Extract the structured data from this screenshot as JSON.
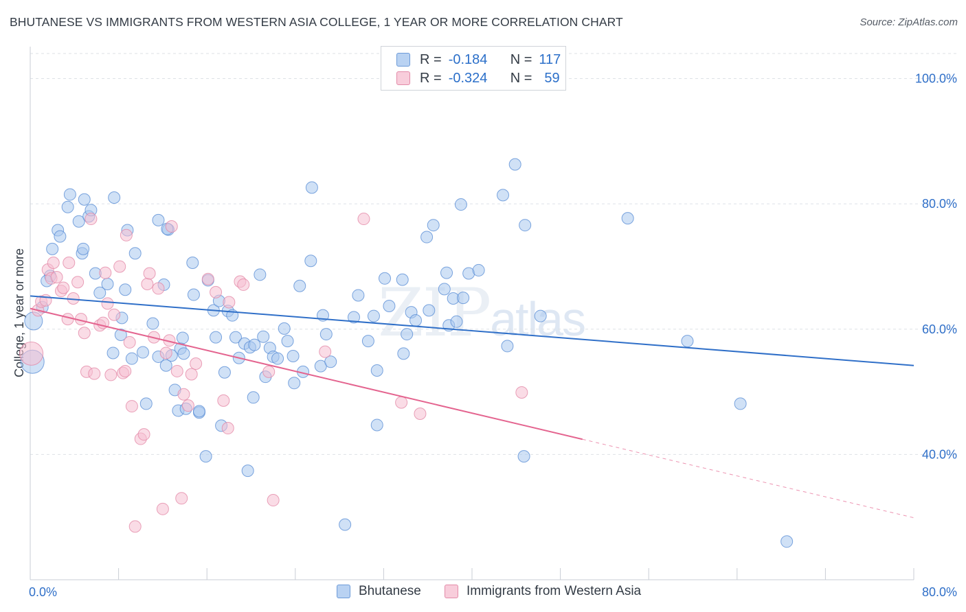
{
  "title": "BHUTANESE VS IMMIGRANTS FROM WESTERN ASIA COLLEGE, 1 YEAR OR MORE CORRELATION CHART",
  "source": "Source: ZipAtlas.com",
  "watermark": {
    "part1": "ZIP",
    "part2": "atlas"
  },
  "legend": {
    "row1": {
      "r_label": "R =",
      "r_value": "-0.184",
      "n_label": "N =",
      "n_value": "117"
    },
    "row2": {
      "r_label": "R =",
      "r_value": "-0.324",
      "n_label": "N =",
      "n_value": "59"
    }
  },
  "colors": {
    "blue_fill": "#a9c8ef",
    "blue_stroke": "#5b8fd6",
    "blue_line": "#2f6fc8",
    "pink_fill": "#f5c0d1",
    "pink_stroke": "#e38aa8",
    "pink_line": "#e4648f",
    "tick_label": "#2f6fc8",
    "grid": "#dde1e6"
  },
  "chart_data": {
    "type": "scatter",
    "xlabel": "",
    "ylabel": "College, 1 year or more",
    "xlim": [
      0,
      80
    ],
    "ylim": [
      20,
      104
    ],
    "x_ticks": [
      "0.0%",
      "80.0%"
    ],
    "y_ticks": [
      {
        "value": 100,
        "label": "100.0%"
      },
      {
        "value": 80,
        "label": "80.0%"
      },
      {
        "value": 60,
        "label": "60.0%"
      },
      {
        "value": 40,
        "label": "40.0%"
      }
    ],
    "grid": true,
    "legend_position": "top-center",
    "series": [
      {
        "name": "Bhutanese",
        "color": "#5b8fd6",
        "trend": {
          "x0": 0,
          "y0": 65.3,
          "x1": 80,
          "y1": 54.2,
          "solid_until": 80
        },
        "points": [
          [
            0.2,
            54.8,
            3
          ],
          [
            0.3,
            61.3,
            2
          ],
          [
            1.1,
            63.5,
            1
          ],
          [
            1.8,
            68.5,
            1
          ],
          [
            1.5,
            67.7,
            1
          ],
          [
            2.0,
            72.8,
            1
          ],
          [
            2.5,
            75.8,
            1
          ],
          [
            2.7,
            74.8,
            1
          ],
          [
            3.4,
            79.5,
            1
          ],
          [
            3.6,
            81.5,
            1
          ],
          [
            4.4,
            77.2,
            1
          ],
          [
            4.9,
            80.7,
            1
          ],
          [
            5.3,
            78.0,
            1
          ],
          [
            5.5,
            79.0,
            1
          ],
          [
            4.7,
            72.1,
            1
          ],
          [
            4.8,
            72.8,
            1
          ],
          [
            7.6,
            81.0,
            1
          ],
          [
            5.9,
            68.9,
            1
          ],
          [
            6.3,
            65.8,
            1
          ],
          [
            7.0,
            67.2,
            1
          ],
          [
            7.5,
            56.2,
            1
          ],
          [
            8.3,
            61.8,
            1
          ],
          [
            8.2,
            59.1,
            1
          ],
          [
            8.6,
            66.3,
            1
          ],
          [
            8.8,
            75.8,
            1
          ],
          [
            9.5,
            72.1,
            1
          ],
          [
            9.2,
            55.3,
            1
          ],
          [
            10.2,
            56.3,
            1
          ],
          [
            10.5,
            48.1,
            1
          ],
          [
            11.6,
            77.4,
            1
          ],
          [
            11.1,
            60.9,
            1
          ],
          [
            11.6,
            55.6,
            1
          ],
          [
            12.1,
            67.1,
            1
          ],
          [
            12.3,
            54.2,
            1
          ],
          [
            12.5,
            75.9,
            1
          ],
          [
            12.4,
            76.0,
            1
          ],
          [
            12.8,
            55.8,
            1
          ],
          [
            13.1,
            50.3,
            1
          ],
          [
            13.4,
            47.0,
            1
          ],
          [
            13.6,
            56.9,
            1
          ],
          [
            13.8,
            58.6,
            1
          ],
          [
            13.9,
            56.1,
            1
          ],
          [
            14.1,
            47.3,
            1
          ],
          [
            14.7,
            70.6,
            1
          ],
          [
            14.8,
            65.5,
            1
          ],
          [
            15.3,
            46.7,
            1
          ],
          [
            15.3,
            46.9,
            1
          ],
          [
            15.9,
            39.7,
            1
          ],
          [
            16.1,
            67.8,
            1
          ],
          [
            16.6,
            63.0,
            1
          ],
          [
            16.8,
            58.7,
            1
          ],
          [
            17.1,
            64.5,
            1
          ],
          [
            17.3,
            44.6,
            1
          ],
          [
            17.6,
            53.1,
            1
          ],
          [
            17.9,
            62.9,
            1
          ],
          [
            18.3,
            62.2,
            1
          ],
          [
            18.6,
            58.7,
            1
          ],
          [
            18.9,
            55.4,
            1
          ],
          [
            19.4,
            57.7,
            1
          ],
          [
            19.7,
            37.4,
            1
          ],
          [
            19.9,
            57.1,
            1
          ],
          [
            20.2,
            49.1,
            1
          ],
          [
            20.3,
            57.5,
            1
          ],
          [
            20.8,
            68.7,
            1
          ],
          [
            21.1,
            58.8,
            1
          ],
          [
            21.3,
            52.4,
            1
          ],
          [
            21.7,
            57.0,
            1
          ],
          [
            22.0,
            55.6,
            1
          ],
          [
            22.4,
            55.3,
            1
          ],
          [
            23.0,
            60.1,
            1
          ],
          [
            23.3,
            58.1,
            1
          ],
          [
            23.8,
            55.7,
            1
          ],
          [
            23.9,
            51.4,
            1
          ],
          [
            24.4,
            66.9,
            1
          ],
          [
            24.7,
            53.2,
            1
          ],
          [
            25.4,
            70.9,
            1
          ],
          [
            25.5,
            82.6,
            1
          ],
          [
            26.3,
            54.1,
            1
          ],
          [
            26.5,
            62.2,
            1
          ],
          [
            26.8,
            59.2,
            1
          ],
          [
            27.2,
            54.8,
            1
          ],
          [
            28.5,
            28.8,
            1
          ],
          [
            29.3,
            61.9,
            1
          ],
          [
            29.7,
            65.4,
            1
          ],
          [
            30.6,
            58.1,
            1
          ],
          [
            31.1,
            62.1,
            1
          ],
          [
            31.4,
            53.4,
            1
          ],
          [
            31.4,
            44.7,
            1
          ],
          [
            32.1,
            68.1,
            1
          ],
          [
            32.5,
            63.7,
            1
          ],
          [
            33.7,
            67.9,
            1
          ],
          [
            33.8,
            56.1,
            1
          ],
          [
            34.1,
            59.2,
            1
          ],
          [
            34.5,
            62.7,
            1
          ],
          [
            34.9,
            61.4,
            1
          ],
          [
            35.9,
            74.7,
            1
          ],
          [
            36.1,
            63.0,
            1
          ],
          [
            36.5,
            76.6,
            1
          ],
          [
            37.5,
            66.4,
            1
          ],
          [
            37.7,
            69.0,
            1
          ],
          [
            37.9,
            60.6,
            1
          ],
          [
            38.3,
            64.9,
            1
          ],
          [
            38.6,
            61.2,
            1
          ],
          [
            39.2,
            65.0,
            1
          ],
          [
            39.0,
            79.9,
            1
          ],
          [
            39.7,
            68.9,
            1
          ],
          [
            40.6,
            69.4,
            1
          ],
          [
            42.8,
            81.4,
            1
          ],
          [
            43.2,
            57.3,
            1
          ],
          [
            43.9,
            86.3,
            1
          ],
          [
            44.8,
            76.6,
            1
          ],
          [
            44.7,
            39.7,
            1
          ],
          [
            46.2,
            62.1,
            1
          ],
          [
            54.1,
            77.7,
            1
          ],
          [
            59.5,
            58.1,
            1
          ],
          [
            64.3,
            48.1,
            1
          ],
          [
            68.5,
            26.1,
            1
          ]
        ]
      },
      {
        "name": "Immigrants from Western Asia",
        "color": "#e38aa8",
        "trend": {
          "x0": 0,
          "y0": 63.3,
          "x1": 80,
          "y1": 29.9,
          "solid_until": 50
        },
        "points": [
          [
            0.1,
            56.1,
            3
          ],
          [
            0.7,
            63.0,
            1
          ],
          [
            1.0,
            64.4,
            1
          ],
          [
            1.4,
            64.6,
            1
          ],
          [
            1.6,
            69.5,
            1
          ],
          [
            1.9,
            68.1,
            1
          ],
          [
            2.1,
            70.6,
            1
          ],
          [
            2.4,
            68.3,
            1
          ],
          [
            2.8,
            66.1,
            1
          ],
          [
            3.0,
            66.6,
            1
          ],
          [
            3.4,
            61.6,
            1
          ],
          [
            3.5,
            70.6,
            1
          ],
          [
            3.9,
            64.9,
            1
          ],
          [
            4.3,
            67.5,
            1
          ],
          [
            4.6,
            61.6,
            1
          ],
          [
            4.9,
            59.4,
            1
          ],
          [
            5.1,
            53.2,
            1
          ],
          [
            5.5,
            77.6,
            1
          ],
          [
            5.8,
            52.9,
            1
          ],
          [
            6.3,
            60.6,
            1
          ],
          [
            6.6,
            61.0,
            1
          ],
          [
            6.8,
            69.0,
            1
          ],
          [
            7.0,
            64.1,
            1
          ],
          [
            7.3,
            52.7,
            1
          ],
          [
            7.6,
            62.3,
            1
          ],
          [
            8.1,
            70.0,
            1
          ],
          [
            8.4,
            53.0,
            1
          ],
          [
            8.6,
            53.3,
            1
          ],
          [
            8.7,
            75.0,
            1
          ],
          [
            9.0,
            57.9,
            1
          ],
          [
            9.2,
            47.7,
            1
          ],
          [
            9.5,
            28.5,
            1
          ],
          [
            10.0,
            42.5,
            1
          ],
          [
            10.3,
            43.2,
            1
          ],
          [
            10.6,
            67.2,
            1
          ],
          [
            10.8,
            68.9,
            1
          ],
          [
            11.2,
            58.7,
            1
          ],
          [
            11.6,
            66.5,
            1
          ],
          [
            12.0,
            31.3,
            1
          ],
          [
            12.3,
            56.2,
            1
          ],
          [
            12.6,
            58.2,
            1
          ],
          [
            12.8,
            76.4,
            1
          ],
          [
            13.3,
            53.3,
            1
          ],
          [
            13.7,
            33.0,
            1
          ],
          [
            13.9,
            49.6,
            1
          ],
          [
            14.3,
            47.8,
            1
          ],
          [
            14.6,
            52.8,
            1
          ],
          [
            15.0,
            54.5,
            1
          ],
          [
            16.1,
            68.0,
            1
          ],
          [
            16.8,
            65.9,
            1
          ],
          [
            17.5,
            48.6,
            1
          ],
          [
            17.9,
            44.2,
            1
          ],
          [
            18.0,
            64.3,
            1
          ],
          [
            19.0,
            67.6,
            1
          ],
          [
            19.3,
            67.1,
            1
          ],
          [
            21.6,
            53.2,
            1
          ],
          [
            22.0,
            32.7,
            1
          ],
          [
            26.7,
            56.4,
            1
          ],
          [
            30.2,
            77.6,
            1
          ],
          [
            33.6,
            48.3,
            1
          ],
          [
            35.3,
            46.5,
            1
          ],
          [
            44.5,
            49.9,
            1
          ]
        ]
      }
    ]
  }
}
